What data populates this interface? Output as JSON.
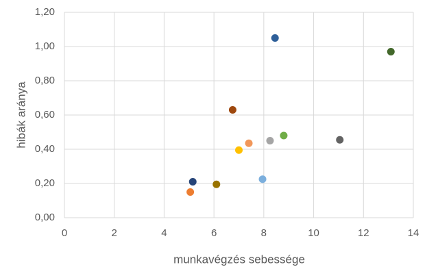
{
  "chart_data": {
    "type": "scatter",
    "x_label": "munkavégzés sebessége",
    "y_label": "hibák aránya",
    "x": [
      8.45,
      13.1,
      6.75,
      8.8,
      8.25,
      11.05,
      7.4,
      7.0,
      5.15,
      6.1,
      7.95,
      5.05
    ],
    "values": [
      1.05,
      0.97,
      0.63,
      0.48,
      0.45,
      0.455,
      0.435,
      0.395,
      0.21,
      0.195,
      0.225,
      0.15
    ],
    "colors": [
      "#2e5f99",
      "#43682b",
      "#9e480e",
      "#70ad47",
      "#a5a5a5",
      "#636363",
      "#f1975a",
      "#ffc000",
      "#264478",
      "#997300",
      "#7cafdd",
      "#ed7d31"
    ],
    "xlim": [
      0,
      14
    ],
    "xticks": [
      0,
      2,
      4,
      6,
      8,
      10,
      12,
      14
    ],
    "ylim": [
      0,
      1.2
    ],
    "yticks": [
      {
        "value": 0,
        "label": "0,00"
      },
      {
        "value": 0.2,
        "label": "0,20"
      },
      {
        "value": 0.4,
        "label": "0,40"
      },
      {
        "value": 0.6,
        "label": "0,60"
      },
      {
        "value": 0.8,
        "label": "0,80"
      },
      {
        "value": 1.0,
        "label": "1,00"
      },
      {
        "value": 1.2,
        "label": "1,20"
      }
    ],
    "grid": true
  }
}
